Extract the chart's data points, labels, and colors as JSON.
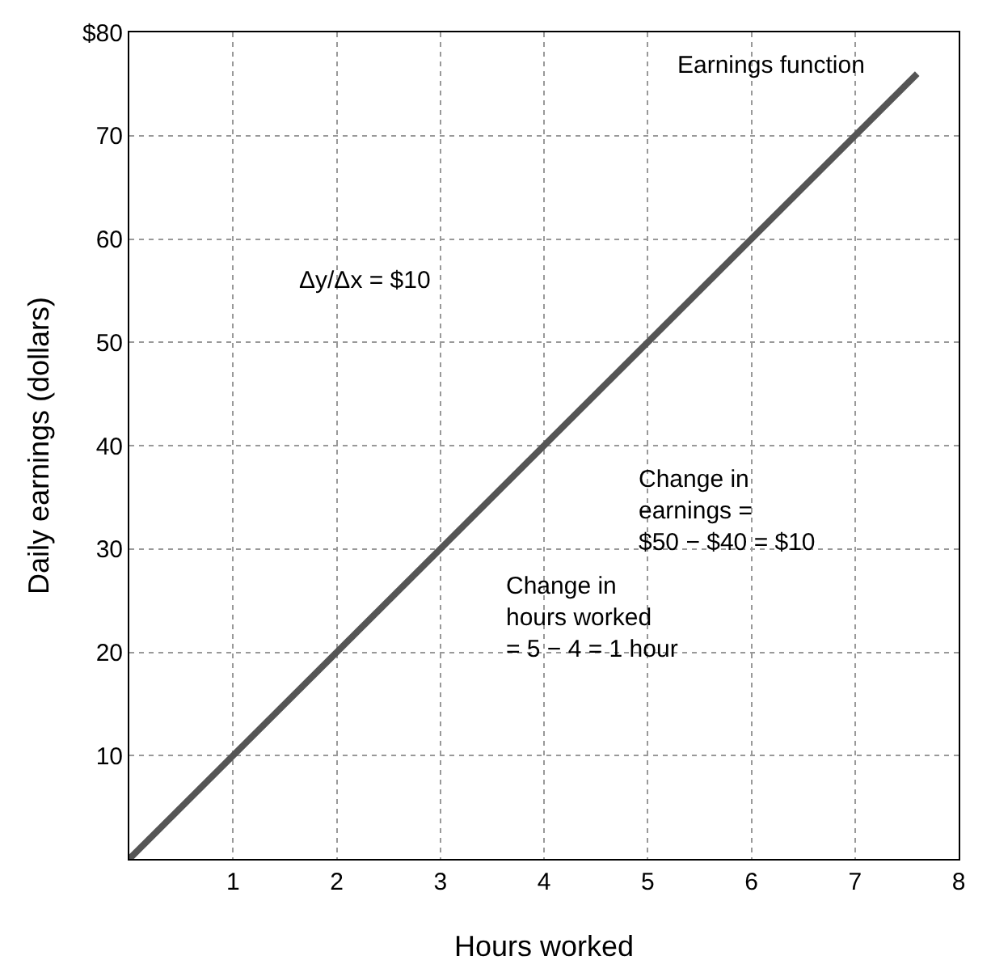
{
  "chart_data": {
    "type": "line",
    "xlabel": "Hours worked",
    "ylabel": "Daily earnings (dollars)",
    "x": [
      0,
      7.6
    ],
    "series": [
      {
        "color": "#555555",
        "values": [
          0,
          76
        ]
      }
    ],
    "xlim": [
      0,
      8
    ],
    "xticks": [
      1,
      2,
      3,
      4,
      5,
      6,
      7,
      8
    ],
    "ylim": [
      0,
      80
    ],
    "yticks": [
      10,
      20,
      30,
      40,
      50,
      60,
      70,
      {
        "value": 80,
        "label": "$80"
      }
    ],
    "grid": true,
    "marker": "none",
    "line_style": "solid",
    "annotations": [
      {
        "text": "Earnings function",
        "x": 7.6,
        "y": 76
      },
      "Δy/Δx = $10",
      "Change in\nearnings =\n$50 − $40 = $10",
      "Change in\nhours worked\n= 5 − 4 = 1 hour"
    ]
  }
}
